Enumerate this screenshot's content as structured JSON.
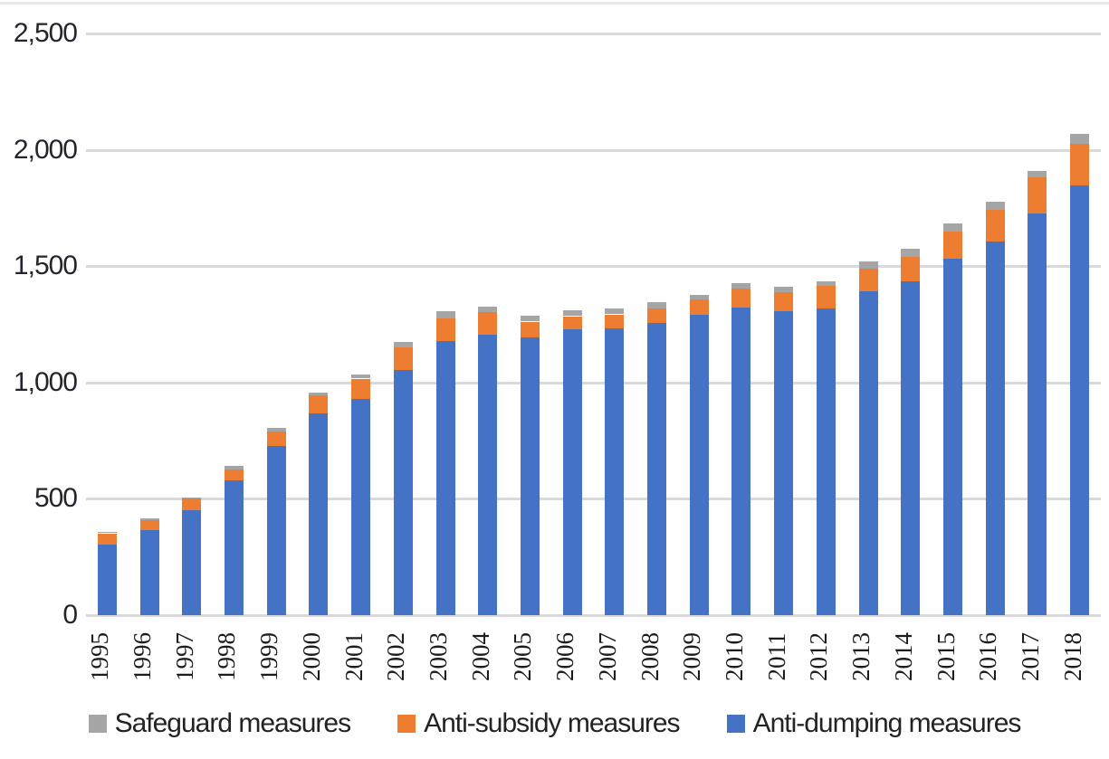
{
  "chart_data": {
    "type": "bar",
    "stacked": true,
    "title": "",
    "xlabel": "",
    "ylabel": "",
    "grid": true,
    "legend_position": "bottom",
    "ylim": [
      0,
      2500
    ],
    "y_ticks": [
      0,
      500,
      1000,
      1500,
      2000,
      2500
    ],
    "y_tick_labels": [
      "0",
      "500",
      "1,000",
      "1,500",
      "2,000",
      "2,500"
    ],
    "categories": [
      "1995",
      "1996",
      "1997",
      "1998",
      "1999",
      "2000",
      "2001",
      "2002",
      "2003",
      "2004",
      "2005",
      "2006",
      "2007",
      "2008",
      "2009",
      "2010",
      "2011",
      "2012",
      "2013",
      "2014",
      "2015",
      "2016",
      "2017",
      "2018"
    ],
    "series": [
      {
        "name": "Anti-dumping measures",
        "color": "#4472C4",
        "values": [
          305,
          364,
          452,
          578,
          726,
          866,
          930,
          1055,
          1178,
          1204,
          1195,
          1230,
          1234,
          1255,
          1292,
          1320,
          1305,
          1318,
          1393,
          1434,
          1530,
          1605,
          1725,
          1848
        ]
      },
      {
        "name": "Anti-subsidy measures",
        "color": "#ED7D31",
        "values": [
          47,
          44,
          49,
          49,
          62,
          80,
          87,
          97,
          99,
          97,
          68,
          56,
          60,
          64,
          65,
          82,
          84,
          98,
          96,
          104,
          117,
          137,
          155,
          178
        ]
      },
      {
        "name": "Safeguard measures",
        "color": "#A5A5A5",
        "values": [
          3,
          8,
          5,
          15,
          15,
          13,
          17,
          23,
          31,
          24,
          22,
          22,
          22,
          26,
          20,
          22,
          22,
          18,
          30,
          35,
          35,
          35,
          26,
          42
        ]
      }
    ]
  },
  "legend": {
    "items": [
      {
        "label": "Safeguard measures",
        "series_index": 2,
        "swatch": "gray-square-icon"
      },
      {
        "label": "Anti-subsidy measures",
        "series_index": 1,
        "swatch": "orange-square-icon"
      },
      {
        "label": "Anti-dumping measures",
        "series_index": 0,
        "swatch": "blue-square-icon"
      }
    ]
  },
  "colors": {
    "gridline": "#d9d9d9",
    "axis_text": "#24242c",
    "year_text": "#1c1c1c"
  }
}
